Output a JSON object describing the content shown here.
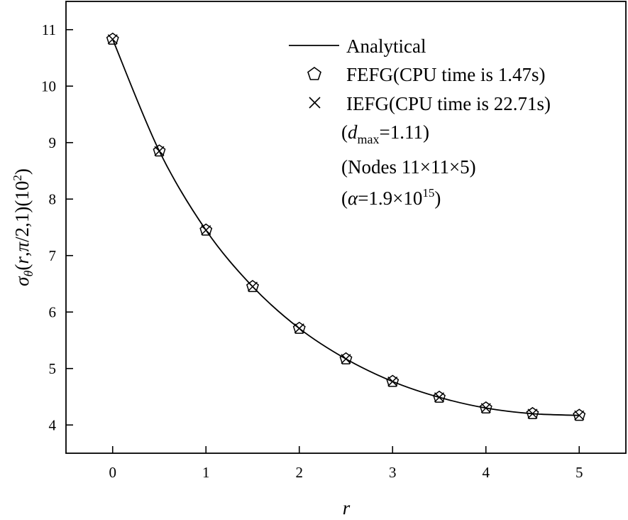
{
  "chart_data": {
    "type": "line",
    "xlabel": "r",
    "ylabel_parts": {
      "sigma": "σ",
      "sub": "θ",
      "args_a": "(",
      "r": "r",
      "args_b": ",",
      "pi": "π",
      "args_c": "/2,1)(10",
      "sup": "2",
      "args_d": ")"
    },
    "xlim": [
      -0.5,
      5.5
    ],
    "ylim": [
      3.5,
      11.5
    ],
    "xticks": [
      0,
      1,
      2,
      3,
      4,
      5
    ],
    "yticks": [
      4,
      5,
      6,
      7,
      8,
      9,
      10,
      11
    ],
    "grid": false,
    "legend_position": "top-right",
    "x": [
      0,
      0.5,
      1,
      1.5,
      2,
      2.5,
      3,
      3.5,
      4,
      4.5,
      5
    ],
    "series": [
      {
        "name": "Analytical",
        "style": "line",
        "values": [
          10.83,
          8.85,
          7.45,
          6.45,
          5.71,
          5.17,
          4.77,
          4.49,
          4.3,
          4.2,
          4.17
        ]
      },
      {
        "name": "FEFG(CPU time is 1.47s)",
        "style": "pentagon",
        "values": [
          10.83,
          8.85,
          7.45,
          6.45,
          5.71,
          5.17,
          4.77,
          4.49,
          4.3,
          4.2,
          4.17
        ]
      },
      {
        "name": "IEFG(CPU time is 22.71s)",
        "style": "cross",
        "values": [
          10.83,
          8.85,
          7.45,
          6.45,
          5.71,
          5.17,
          4.77,
          4.49,
          4.3,
          4.2,
          4.17
        ]
      }
    ],
    "annotations": {
      "dmax": {
        "open": "(",
        "d": "d",
        "sub": "max",
        "rest": "=1.11)"
      },
      "nodes": "(Nodes 11×11×5)",
      "alpha": {
        "open": "(",
        "alpha": "α",
        "mid": "=1.9×10",
        "sup": "15",
        "close": ")"
      }
    },
    "colors": {
      "line": "#000000",
      "marker": "#000000"
    }
  }
}
